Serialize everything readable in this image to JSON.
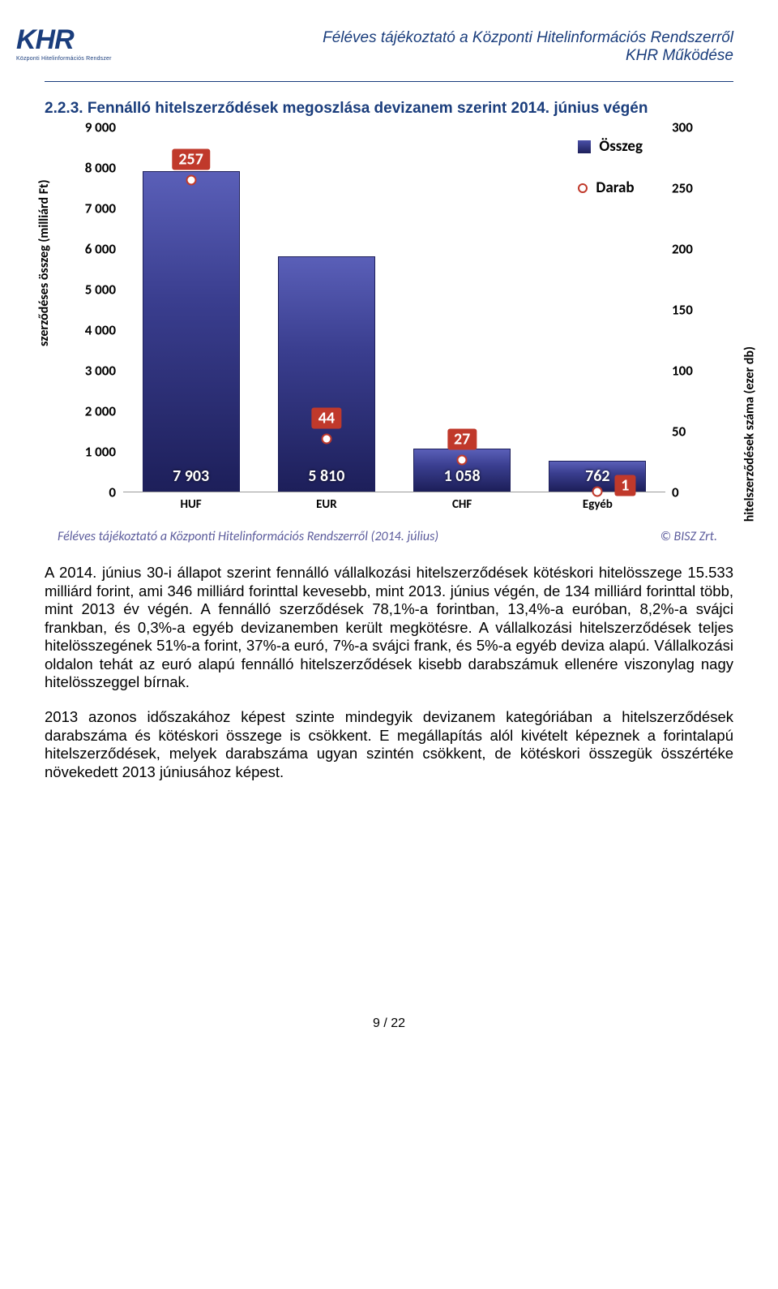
{
  "header": {
    "logo_main": "KHR",
    "logo_sub": "Központi Hitelinformációs Rendszer",
    "line1": "Féléves tájékoztató a Központi Hitelinformációs Rendszerről",
    "line2": "KHR Működése"
  },
  "section_title": "2.2.3.  Fennálló hitelszerződések megoszlása devizanem szerint 2014. június végén",
  "chart": {
    "type": "bar+scatter",
    "categories": [
      "HUF",
      "EUR",
      "CHF",
      "Egyéb"
    ],
    "bar_values": [
      7903,
      5810,
      1058,
      762
    ],
    "bar_labels": [
      "7 903",
      "5 810",
      "1 058",
      "762"
    ],
    "marker_values": [
      257,
      44,
      27,
      1
    ],
    "marker_labels": [
      "257",
      "44",
      "27",
      "1"
    ],
    "bar_fill_top": "#5a5fb8",
    "bar_fill_bottom": "#1d1f5a",
    "marker_border": "#c0392b",
    "marker_fill": "#ffffff",
    "marker_label_bg": "#c0392b",
    "y_left": {
      "label": "szerződéses összeg (milliárd Ft)",
      "ticks": [
        0,
        1000,
        2000,
        3000,
        4000,
        5000,
        6000,
        7000,
        8000,
        9000
      ],
      "tick_labels": [
        "0",
        "1 000",
        "2 000",
        "3 000",
        "4 000",
        "5 000",
        "6 000",
        "7 000",
        "8 000",
        "9 000"
      ],
      "min": 0,
      "max": 9000
    },
    "y_right": {
      "label": "hitelszerződések száma (ezer db)",
      "ticks": [
        0,
        50,
        100,
        150,
        200,
        250,
        300
      ],
      "tick_labels": [
        "0",
        "50",
        "100",
        "150",
        "200",
        "250",
        "300"
      ],
      "min": 0,
      "max": 300
    },
    "legend": {
      "bar": "Összeg",
      "marker": "Darab"
    },
    "footer_left": "Féléves tájékoztató a Központi Hitelinformációs Rendszerről (2014. július)",
    "footer_right": "© BISZ Zrt.",
    "background_color": "#ffffff",
    "font_family": "Calibri"
  },
  "paragraphs": {
    "p1": "A 2014. június 30-i állapot szerint fennálló vállalkozási hitelszerződések kötéskori hitelösszege 15.533 milliárd forint, ami 346 milliárd forinttal kevesebb, mint 2013. június végén, de 134 milliárd forinttal több, mint 2013 év végén. A fennálló szerződések 78,1%-a forintban, 13,4%-a euróban, 8,2%-a svájci frankban, és 0,3%-a egyéb devizanemben került megkötésre. A vállalkozási hitelszerződések teljes hitelösszegének 51%-a forint, 37%-a euró, 7%-a svájci frank, és 5%-a egyéb deviza alapú. Vállalkozási oldalon tehát az euró alapú fennálló hitelszerződések kisebb darabszámuk ellenére viszonylag nagy hitelösszeggel bírnak.",
    "p2": "2013 azonos időszakához képest szinte mindegyik devizanem kategóriában a hitelszerződések darabszáma és kötéskori összege is csökkent. E megállapítás alól kivételt képeznek a forintalapú hitelszerződések, melyek darabszáma ugyan szintén csökkent, de kötéskori összegük összértéke növekedett 2013 júniusához képest."
  },
  "page_number": "9 / 22"
}
